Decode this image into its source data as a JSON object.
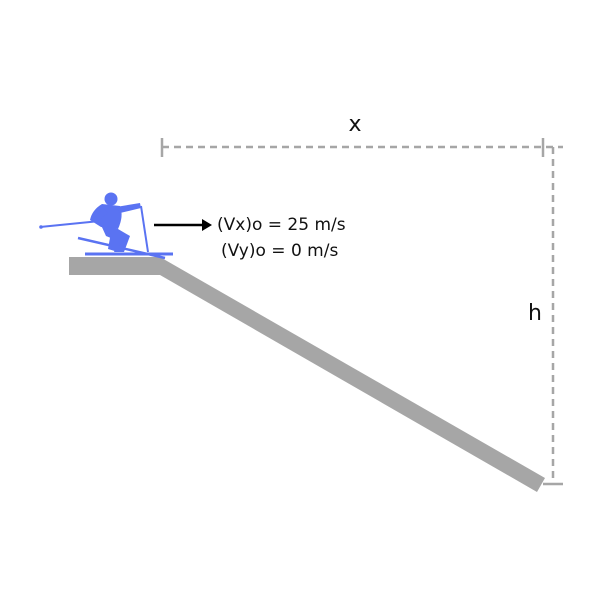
{
  "diagram": {
    "labels": {
      "horizontal_distance": "x",
      "vertical_drop": "h",
      "vx0": "(Vx)o = 25 m/s",
      "vy0": "(Vy)o = 0 m/s"
    },
    "icons": {
      "skier": "skier-icon",
      "velocity_arrow": "arrow-right-icon"
    },
    "colors": {
      "slope": "#a6a6a6",
      "skier": "#5a73f2",
      "dimension_lines": "#a6a6a6",
      "text": "#111111",
      "arrow": "#000000"
    }
  }
}
